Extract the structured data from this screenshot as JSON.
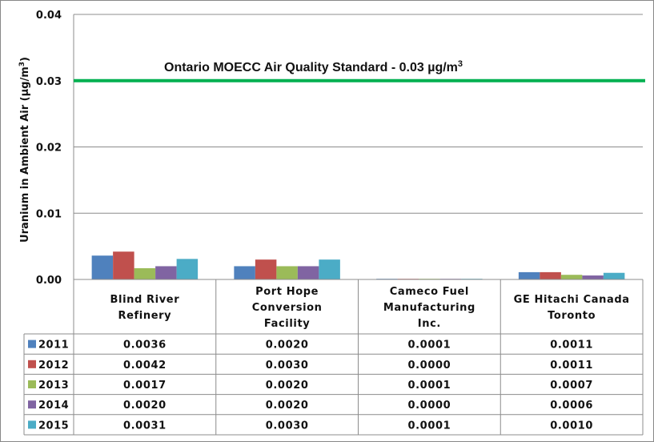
{
  "chart_data": {
    "type": "bar",
    "ylabel": "Uranium in Ambient Air (µg/m",
    "ylabel_sup": "3",
    "ylabel_end": ")",
    "ylim": [
      0,
      0.04
    ],
    "yticks": [
      "0.00",
      "0.01",
      "0.02",
      "0.03",
      "0.04"
    ],
    "grid": true,
    "categories": [
      [
        "Blind River",
        "Refinery"
      ],
      [
        "Port Hope",
        "Conversion",
        "Facility"
      ],
      [
        "Cameco Fuel",
        "Manufacturing",
        "Inc."
      ],
      [
        "GE Hitachi Canada",
        "Toronto"
      ]
    ],
    "series": [
      {
        "name": "2011",
        "color": "#4f81bd",
        "values": [
          0.0036,
          0.002,
          0.0001,
          0.0011
        ],
        "labels": [
          "0.0036",
          "0.0020",
          "0.0001",
          "0.0011"
        ]
      },
      {
        "name": "2012",
        "color": "#c0504d",
        "values": [
          0.0042,
          0.003,
          0.0,
          0.0011
        ],
        "labels": [
          "0.0042",
          "0.0030",
          "0.0000",
          "0.0011"
        ]
      },
      {
        "name": "2013",
        "color": "#9bbb59",
        "values": [
          0.0017,
          0.002,
          0.0001,
          0.0007
        ],
        "labels": [
          "0.0017",
          "0.0020",
          "0.0001",
          "0.0007"
        ]
      },
      {
        "name": "2014",
        "color": "#8064a2",
        "values": [
          0.002,
          0.002,
          0.0,
          0.0006
        ],
        "labels": [
          "0.0020",
          "0.0020",
          "0.0000",
          "0.0006"
        ]
      },
      {
        "name": "2015",
        "color": "#4bacc6",
        "values": [
          0.0031,
          0.003,
          0.0001,
          0.001
        ],
        "labels": [
          "0.0031",
          "0.0030",
          "0.0001",
          "0.0010"
        ]
      }
    ],
    "reference_line": {
      "value": 0.03,
      "color": "#00b050",
      "label": "Ontario MOECC Air Quality Standard - 0.03 µg/m",
      "label_sup": "3"
    },
    "data_table": true
  }
}
